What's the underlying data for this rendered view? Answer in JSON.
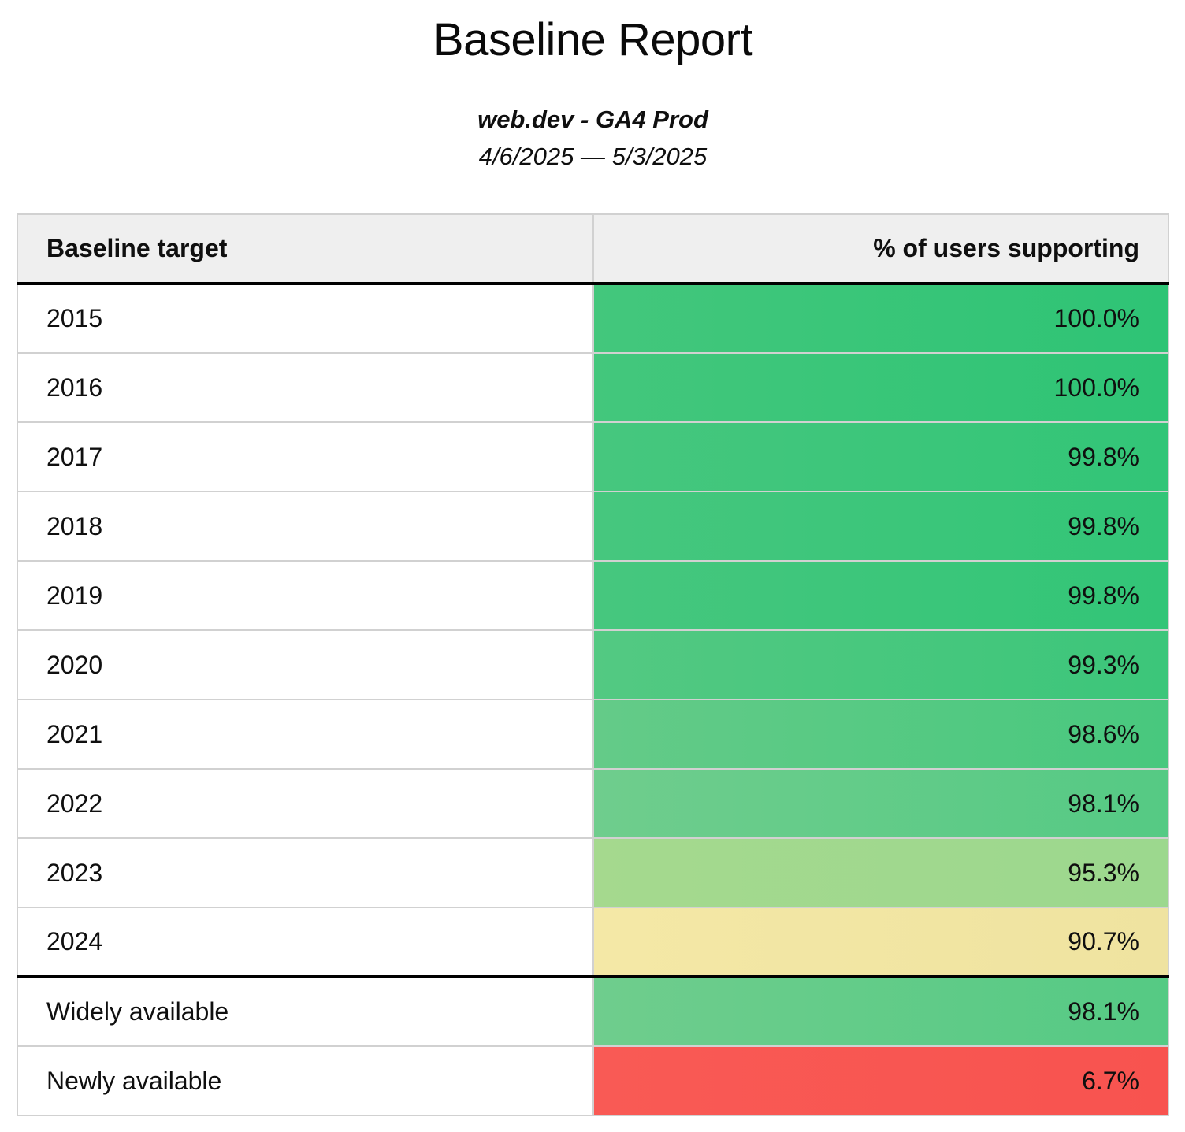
{
  "report": {
    "title": "Baseline Report",
    "property": "web.dev - GA4 Prod",
    "date_range": "4/6/2025 — 5/3/2025"
  },
  "table": {
    "headers": {
      "target": "Baseline target",
      "support": "% of users supporting"
    },
    "rows": [
      {
        "target": "2015",
        "support": "100.0%",
        "bg_start": "#43c77c",
        "bg_end": "#2ec475",
        "divider_above": false
      },
      {
        "target": "2016",
        "support": "100.0%",
        "bg_start": "#43c77c",
        "bg_end": "#2ec475",
        "divider_above": false
      },
      {
        "target": "2017",
        "support": "99.8%",
        "bg_start": "#46c77e",
        "bg_end": "#32c577",
        "divider_above": false
      },
      {
        "target": "2018",
        "support": "99.8%",
        "bg_start": "#46c77e",
        "bg_end": "#32c577",
        "divider_above": false
      },
      {
        "target": "2019",
        "support": "99.8%",
        "bg_start": "#46c77e",
        "bg_end": "#32c577",
        "divider_above": false
      },
      {
        "target": "2020",
        "support": "99.3%",
        "bg_start": "#53c982",
        "bg_end": "#3cc67a",
        "divider_above": false
      },
      {
        "target": "2021",
        "support": "98.6%",
        "bg_start": "#64cb88",
        "bg_end": "#48c87e",
        "divider_above": false
      },
      {
        "target": "2022",
        "support": "98.1%",
        "bg_start": "#6fcd8d",
        "bg_end": "#55ca84",
        "divider_above": false
      },
      {
        "target": "2023",
        "support": "95.3%",
        "bg_start": "#a5d98e",
        "bg_end": "#9cd88e",
        "divider_above": false
      },
      {
        "target": "2024",
        "support": "90.7%",
        "bg_start": "#f4e8a6",
        "bg_end": "#efe3a0",
        "divider_above": false
      },
      {
        "target": "Widely available",
        "support": "98.1%",
        "bg_start": "#6fcd8d",
        "bg_end": "#55ca84",
        "divider_above": true
      },
      {
        "target": "Newly available",
        "support": "6.7%",
        "bg_start": "#f95a55",
        "bg_end": "#f8534f",
        "divider_above": false
      }
    ]
  },
  "colors": {
    "page_background": "#ffffff",
    "header_background": "#efefef",
    "grid_border": "#d1d1d1",
    "section_divider": "#000000",
    "text": "#0f0f0f",
    "green_high": "#2ec475",
    "green_light": "#a5d98e",
    "yellow_mid": "#f2e6a3",
    "red_low": "#f95a55"
  },
  "chart_data": {
    "type": "table",
    "title": "Baseline Report",
    "subtitle": "web.dev - GA4 Prod",
    "date_range": "4/6/2025 — 5/3/2025",
    "columns": [
      "Baseline target",
      "% of users supporting"
    ],
    "rows": [
      [
        "2015",
        100.0
      ],
      [
        "2016",
        100.0
      ],
      [
        "2017",
        99.8
      ],
      [
        "2018",
        99.8
      ],
      [
        "2019",
        99.8
      ],
      [
        "2020",
        99.3
      ],
      [
        "2021",
        98.6
      ],
      [
        "2022",
        98.1
      ],
      [
        "2023",
        95.3
      ],
      [
        "2024",
        90.7
      ],
      [
        "Widely available",
        98.1
      ],
      [
        "Newly available",
        6.7
      ]
    ],
    "value_unit": "percent",
    "value_range": [
      0,
      100
    ],
    "encoding": "support-percentage cell background is heat-colored from red (low) through yellow to green (high)",
    "sections": [
      {
        "name": "yearly-targets",
        "rows": [
          "2015",
          "2016",
          "2017",
          "2018",
          "2019",
          "2020",
          "2021",
          "2022",
          "2023",
          "2024"
        ]
      },
      {
        "name": "availability-status",
        "rows": [
          "Widely available",
          "Newly available"
        ]
      }
    ]
  }
}
